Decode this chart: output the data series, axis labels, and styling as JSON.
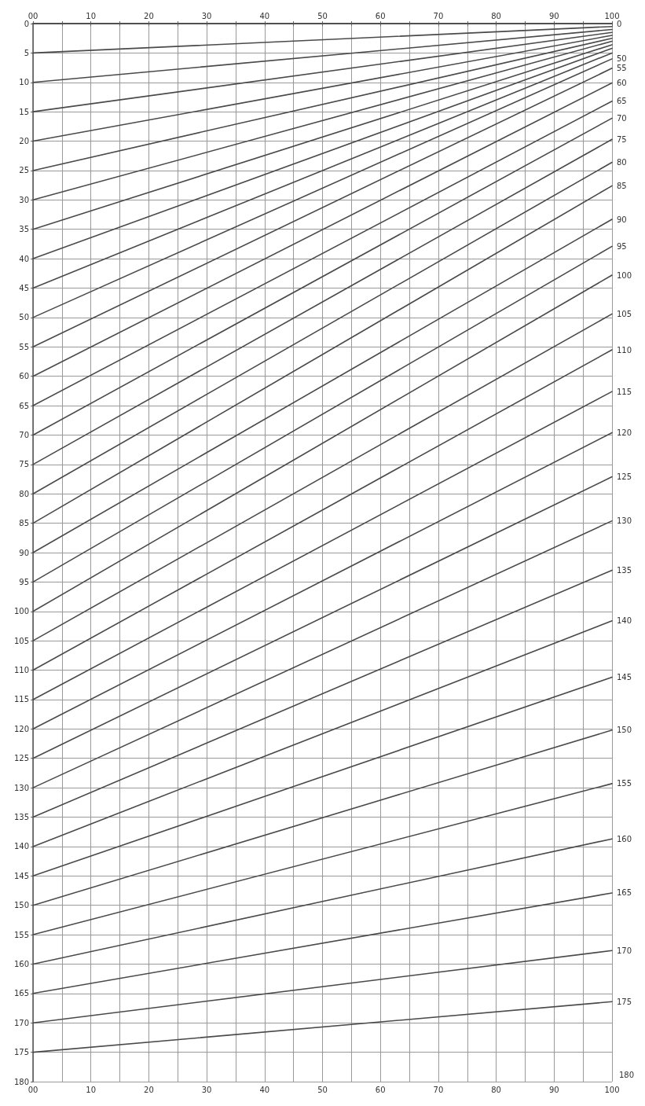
{
  "chart_data": {
    "type": "line",
    "xlim": [
      0,
      100
    ],
    "x2lim": [
      0,
      100
    ],
    "xticks": [
      {
        "value": 0,
        "label": "00"
      },
      {
        "value": 5,
        "label": null
      },
      10,
      {
        "value": 15,
        "label": null
      },
      20,
      {
        "value": 25,
        "label": null
      },
      30,
      {
        "value": 35,
        "label": null
      },
      40,
      {
        "value": 45,
        "label": null
      },
      50,
      {
        "value": 55,
        "label": null
      },
      60,
      {
        "value": 65,
        "label": null
      },
      70,
      {
        "value": 75,
        "label": null
      },
      80,
      {
        "value": 85,
        "label": null
      },
      90,
      {
        "value": 95,
        "label": null
      },
      100
    ],
    "x2ticks": [
      {
        "value": 0,
        "label": "00"
      },
      {
        "value": 5,
        "label": null
      },
      10,
      {
        "value": 15,
        "label": null
      },
      20,
      {
        "value": 25,
        "label": null
      },
      30,
      {
        "value": 35,
        "label": null
      },
      40,
      {
        "value": 45,
        "label": null
      },
      50,
      {
        "value": 55,
        "label": null
      },
      60,
      {
        "value": 65,
        "label": null
      },
      70,
      {
        "value": 75,
        "label": null
      },
      80,
      {
        "value": 85,
        "label": null
      },
      90,
      {
        "value": 95,
        "label": null
      },
      100
    ],
    "ylim": [
      180,
      0
    ],
    "yticks": [
      0,
      5,
      10,
      15,
      20,
      25,
      30,
      35,
      40,
      45,
      50,
      55,
      60,
      65,
      70,
      75,
      80,
      85,
      90,
      95,
      100,
      105,
      110,
      115,
      120,
      125,
      130,
      135,
      140,
      145,
      150,
      155,
      160,
      165,
      170,
      175,
      180
    ],
    "annotations": [
      "180"
    ],
    "grid": true,
    "marker": "none",
    "line_style": "solid",
    "legend": false,
    "x": [
      0,
      100
    ],
    "series": [
      {
        "name": "0",
        "color": "#4a4a4a",
        "values": [
          0,
          0
        ]
      },
      {
        "color": "#4a4a4a",
        "values": [
          5,
          0.5
        ]
      },
      {
        "color": "#4a4a4a",
        "values": [
          10,
          1
        ]
      },
      {
        "color": "#4a4a4a",
        "values": [
          15,
          1.5
        ]
      },
      {
        "color": "#4a4a4a",
        "values": [
          20,
          2
        ]
      },
      {
        "color": "#4a4a4a",
        "values": [
          25,
          2.5
        ]
      },
      {
        "color": "#4a4a4a",
        "values": [
          30,
          3
        ]
      },
      {
        "color": "#4a4a4a",
        "values": [
          35,
          3.6
        ]
      },
      {
        "color": "#4a4a4a",
        "values": [
          40,
          4.2
        ]
      },
      {
        "color": "#4a4a4a",
        "values": [
          45,
          5
        ]
      },
      {
        "name": "50",
        "color": "#4a4a4a",
        "values": [
          50,
          6
        ]
      },
      {
        "name": "55",
        "color": "#4a4a4a",
        "values": [
          55,
          7.6
        ]
      },
      {
        "name": "60",
        "color": "#4a4a4a",
        "values": [
          60,
          10.1
        ]
      },
      {
        "name": "65",
        "color": "#4a4a4a",
        "values": [
          65,
          13.2
        ]
      },
      {
        "name": "70",
        "color": "#4a4a4a",
        "values": [
          70,
          16.1
        ]
      },
      {
        "name": "75",
        "color": "#4a4a4a",
        "values": [
          75,
          19.7
        ]
      },
      {
        "name": "80",
        "color": "#4a4a4a",
        "values": [
          80,
          23.6
        ]
      },
      {
        "name": "85",
        "color": "#4a4a4a",
        "values": [
          85,
          27.6
        ]
      },
      {
        "name": "90",
        "color": "#4a4a4a",
        "values": [
          90,
          33.3
        ]
      },
      {
        "name": "95",
        "color": "#4a4a4a",
        "values": [
          95,
          37.9
        ]
      },
      {
        "name": "100",
        "color": "#4a4a4a",
        "values": [
          100,
          42.8
        ]
      },
      {
        "name": "105",
        "color": "#4a4a4a",
        "values": [
          105,
          49.4
        ]
      },
      {
        "name": "110",
        "color": "#4a4a4a",
        "values": [
          110,
          55.5
        ]
      },
      {
        "name": "115",
        "color": "#4a4a4a",
        "values": [
          115,
          62.6
        ]
      },
      {
        "name": "120",
        "color": "#4a4a4a",
        "values": [
          120,
          69.6
        ]
      },
      {
        "name": "125",
        "color": "#4a4a4a",
        "values": [
          125,
          77.1
        ]
      },
      {
        "name": "130",
        "color": "#4a4a4a",
        "values": [
          130,
          84.6
        ]
      },
      {
        "name": "135",
        "color": "#4a4a4a",
        "values": [
          135,
          93
        ]
      },
      {
        "name": "140",
        "color": "#4a4a4a",
        "values": [
          140,
          101.6
        ]
      },
      {
        "name": "145",
        "color": "#4a4a4a",
        "values": [
          145,
          111.2
        ]
      },
      {
        "name": "150",
        "color": "#4a4a4a",
        "values": [
          150,
          120.2
        ]
      },
      {
        "name": "155",
        "color": "#4a4a4a",
        "values": [
          155,
          129.3
        ]
      },
      {
        "name": "160",
        "color": "#4a4a4a",
        "values": [
          160,
          138.7
        ]
      },
      {
        "name": "165",
        "color": "#4a4a4a",
        "values": [
          165,
          147.9
        ]
      },
      {
        "name": "170",
        "color": "#4a4a4a",
        "values": [
          170,
          157.7
        ]
      },
      {
        "name": "175",
        "color": "#4a4a4a",
        "values": [
          175,
          166.4
        ]
      }
    ]
  }
}
